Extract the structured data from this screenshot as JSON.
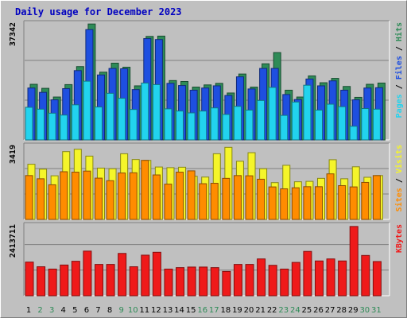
{
  "title": "Daily usage for December 2023",
  "colors": {
    "hits": "#2e8b57",
    "files": "#1e4fe0",
    "pages": "#22d3ee",
    "visits": "#f5f52a",
    "sites": "#ff8c00",
    "kbytes": "#ef1a1a",
    "weekend": "#2e8b57",
    "weekday": "#000000"
  },
  "chart_data": [
    {
      "type": "bar",
      "panel": "hits-files-pages",
      "ymax_label": "37342",
      "ymax": 37342,
      "legend": [
        "Pages",
        "/",
        "Files",
        "/",
        "Hits"
      ],
      "categories": [
        "1",
        "2",
        "3",
        "4",
        "5",
        "6",
        "7",
        "8",
        "9",
        "10",
        "11",
        "12",
        "13",
        "14",
        "15",
        "16",
        "17",
        "18",
        "19",
        "20",
        "21",
        "22",
        "23",
        "24",
        "25",
        "26",
        "27",
        "28",
        "29",
        "30",
        "31"
      ],
      "weekend": [
        false,
        true,
        true,
        false,
        false,
        false,
        false,
        false,
        true,
        true,
        false,
        false,
        false,
        false,
        false,
        true,
        true,
        false,
        false,
        false,
        false,
        false,
        true,
        true,
        false,
        false,
        false,
        false,
        false,
        true,
        true
      ],
      "series": [
        {
          "name": "Hits",
          "values": [
            17900,
            16600,
            13800,
            17800,
            23600,
            37300,
            21800,
            24700,
            23400,
            17400,
            33300,
            33400,
            19100,
            18800,
            17000,
            17700,
            18200,
            15100,
            21200,
            17000,
            24500,
            28100,
            16000,
            13800,
            20600,
            18400,
            19800,
            17200,
            13700,
            17900,
            18300
          ]
        },
        {
          "name": "Files",
          "values": [
            16700,
            15300,
            12900,
            16500,
            22300,
            35500,
            20900,
            23000,
            22900,
            16200,
            32600,
            32300,
            18200,
            17500,
            16000,
            16700,
            17400,
            14300,
            20300,
            16400,
            23000,
            23000,
            14600,
            13000,
            19600,
            17400,
            19000,
            16000,
            12900,
            16700,
            16800
          ]
        },
        {
          "name": "Pages",
          "values": [
            10500,
            9900,
            8600,
            8000,
            11300,
            18900,
            10600,
            15000,
            13400,
            9800,
            18300,
            17800,
            10000,
            9300,
            8700,
            9300,
            10300,
            8200,
            10800,
            9600,
            12700,
            16900,
            7900,
            12200,
            17600,
            9600,
            11500,
            10700,
            4400,
            10100,
            9900
          ]
        }
      ]
    },
    {
      "type": "bar",
      "panel": "visits-sites",
      "ymax_label": "3419",
      "ymax": 3419,
      "legend": [
        "Sites",
        "/",
        "Visits"
      ],
      "categories": [
        "1",
        "2",
        "3",
        "4",
        "5",
        "6",
        "7",
        "8",
        "9",
        "10",
        "11",
        "12",
        "13",
        "14",
        "15",
        "16",
        "17",
        "18",
        "19",
        "20",
        "21",
        "22",
        "23",
        "24",
        "25",
        "26",
        "27",
        "28",
        "29",
        "30",
        "31"
      ],
      "series": [
        {
          "name": "Visits",
          "values": [
            2580,
            2350,
            2040,
            3170,
            3280,
            2960,
            2400,
            2370,
            3070,
            2800,
            2760,
            2450,
            2420,
            2440,
            2020,
            1980,
            3070,
            3370,
            2720,
            3120,
            2370,
            1720,
            2530,
            1760,
            1780,
            1920,
            2790,
            1900,
            2460,
            1970,
            2050
          ]
        },
        {
          "name": "Sites",
          "values": [
            2050,
            1900,
            1620,
            2230,
            2210,
            2260,
            1930,
            1810,
            2170,
            2180,
            2760,
            2080,
            1650,
            2210,
            2270,
            1670,
            1690,
            1920,
            2050,
            2040,
            1880,
            1520,
            1430,
            1480,
            1530,
            1530,
            2130,
            1580,
            1520,
            1730,
            2050
          ]
        }
      ]
    },
    {
      "type": "bar",
      "panel": "kbytes",
      "ymax_label": "2413711",
      "ymax": 2413711,
      "legend": [
        "KBytes"
      ],
      "categories": [
        "1",
        "2",
        "3",
        "4",
        "5",
        "6",
        "7",
        "8",
        "9",
        "10",
        "11",
        "12",
        "13",
        "14",
        "15",
        "16",
        "17",
        "18",
        "19",
        "20",
        "21",
        "22",
        "23",
        "24",
        "25",
        "26",
        "27",
        "28",
        "29",
        "30",
        "31"
      ],
      "series": [
        {
          "name": "KBytes",
          "values": [
            1162000,
            1000000,
            920000,
            1060000,
            1190000,
            1540000,
            1080000,
            1080000,
            1460000,
            1000000,
            1400000,
            1500000,
            920000,
            970000,
            990000,
            990000,
            970000,
            840000,
            1080000,
            1080000,
            1270000,
            1050000,
            920000,
            1150000,
            1530000,
            1200000,
            1270000,
            1200000,
            2390000,
            1390000,
            1180000
          ]
        }
      ]
    }
  ]
}
